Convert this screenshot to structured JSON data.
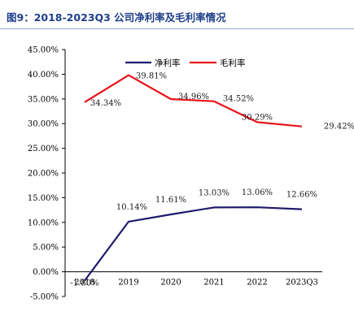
{
  "title": "图9：2018-2023Q3 公司净利率及毛利率情况",
  "colors": {
    "title": "#1f3f8a",
    "net_margin": "#1f1a6e",
    "gross_margin": "#e8141b"
  },
  "chart_data": {
    "type": "line",
    "title": "图9：2018-2023Q3 公司净利率及毛利率情况",
    "categories": [
      "2018",
      "2019",
      "2020",
      "2021",
      "2022",
      "2023Q3"
    ],
    "y_ticks": [
      "45.00%",
      "40.00%",
      "35.00%",
      "30.00%",
      "25.00%",
      "20.00%",
      "15.00%",
      "10.00%",
      "5.00%",
      "0.00%",
      "-5.00%"
    ],
    "ylim": [
      -5,
      45
    ],
    "y_unit": "%",
    "grid": false,
    "legend_position": "top",
    "series": [
      {
        "name": "净利率",
        "color": "#1f1a6e",
        "values": [
          -1.8,
          10.14,
          11.61,
          13.03,
          13.06,
          12.66
        ],
        "labels": [
          "-1.80%",
          "10.14%",
          "11.61%",
          "13.03%",
          "13.06%",
          "12.66%"
        ]
      },
      {
        "name": "毛利率",
        "color": "#e8141b",
        "values": [
          34.34,
          39.81,
          34.96,
          34.52,
          30.29,
          29.42
        ],
        "labels": [
          "34.34%",
          "39.81%",
          "34.96%",
          "34.52%",
          "30.29%",
          "29.42%"
        ]
      }
    ]
  }
}
